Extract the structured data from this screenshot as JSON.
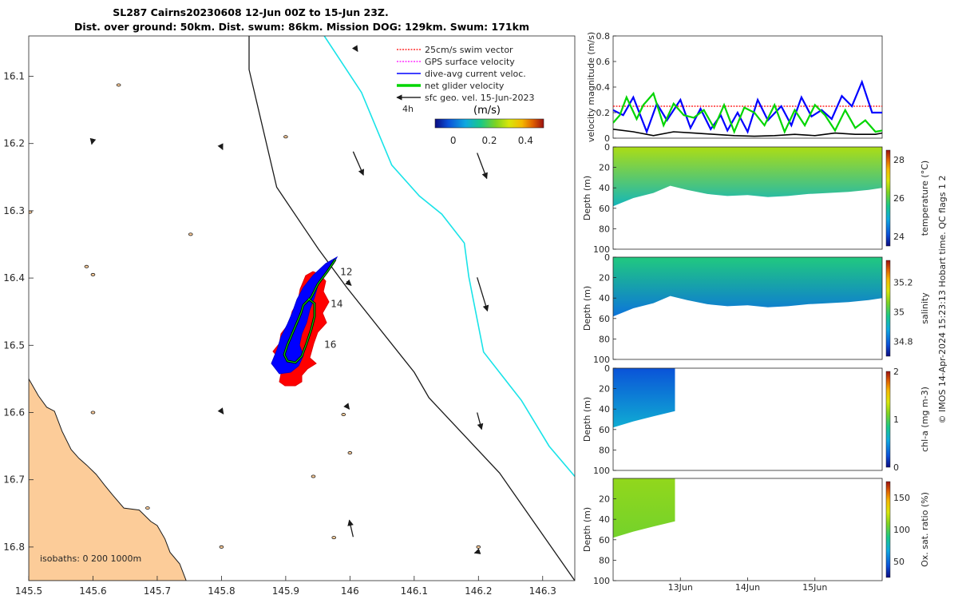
{
  "figure": {
    "title_line1": "SL287 Cairns20230608 12-Jun 00Z to 15-Jun 23Z.",
    "title_line2": "Dist. over ground: 50km. Dist. swum: 86km. Mission DOG: 129km. Swum: 171km",
    "credit": "© IMOS 14-Apr-2024 15:23:13 Hobart time. QC flags 1  2"
  },
  "colors": {
    "land": "#fccc99",
    "track_blue": "#0000ff",
    "swim_red": "#ff0000",
    "cyan_isobath": "#19e3e8",
    "net_green": "#00d500",
    "geo_black": "#1a1a1a"
  },
  "chart_data": [
    {
      "id": "map",
      "type": "scatter",
      "xlabel": "",
      "ylabel": "",
      "xlim": [
        145.5,
        146.35
      ],
      "ylim": [
        -16.85,
        -16.04
      ],
      "x_ticks": [
        145.5,
        145.6,
        145.7,
        145.8,
        145.9,
        146.0,
        146.1,
        146.2,
        146.3
      ],
      "x_tick_labels": [
        "145.5",
        "145.6",
        "145.7",
        "145.8",
        "145.9",
        "146",
        "146.1",
        "146.2",
        "146.3"
      ],
      "y_ticks": [
        -16.1,
        -16.2,
        -16.3,
        -16.4,
        -16.5,
        -16.6,
        -16.7,
        -16.8
      ],
      "y_tick_labels": [
        "16.1",
        "16.2",
        "16.3",
        "16.4",
        "16.5",
        "16.6",
        "16.7",
        "16.8"
      ],
      "legend": [
        {
          "label": "25cm/s swim vector",
          "color": "#ff0000",
          "style": "dotted"
        },
        {
          "label": "GPS surface velocity",
          "color": "#ff00ff",
          "style": "dotted"
        },
        {
          "label": "dive-avg current veloc.",
          "color": "#0000ff",
          "style": "solid"
        },
        {
          "label": "net glider velocity",
          "color": "#00d500",
          "style": "thick"
        },
        {
          "label": "sfc geo. vel. 15-Jun-2023",
          "color": "#000000",
          "style": "solid"
        }
      ],
      "time_note": "4h",
      "colorbar": {
        "label": "(m/s)",
        "ticks": [
          0,
          0.2,
          0.4
        ],
        "tick_labels": [
          "0",
          "0.2",
          "0.4"
        ],
        "range": [
          -0.1,
          0.5
        ]
      },
      "isobaths_note": "isobaths: 0   200  1000m",
      "track_labels": [
        {
          "text": "12",
          "lon": 145.985,
          "lat": -16.396
        },
        {
          "text": "14",
          "lon": 145.97,
          "lat": -16.443
        },
        {
          "text": "16",
          "lon": 145.96,
          "lat": -16.504
        }
      ],
      "isobath_200m": [
        [
          145.843,
          -16.04
        ],
        [
          145.843,
          -16.09
        ],
        [
          145.886,
          -16.265
        ],
        [
          145.951,
          -16.357
        ],
        [
          145.995,
          -16.414
        ],
        [
          146.1,
          -16.54
        ],
        [
          146.123,
          -16.578
        ],
        [
          146.233,
          -16.69
        ],
        [
          146.35,
          -16.85
        ]
      ],
      "isobath_1000m": [
        [
          145.96,
          -16.04
        ],
        [
          146.018,
          -16.124
        ],
        [
          146.065,
          -16.232
        ],
        [
          146.108,
          -16.278
        ],
        [
          146.143,
          -16.305
        ],
        [
          146.178,
          -16.348
        ],
        [
          146.185,
          -16.398
        ],
        [
          146.208,
          -16.51
        ],
        [
          146.267,
          -16.582
        ],
        [
          146.31,
          -16.65
        ],
        [
          146.35,
          -16.695
        ]
      ],
      "coast": [
        [
          145.5,
          -16.55
        ],
        [
          145.515,
          -16.575
        ],
        [
          145.528,
          -16.592
        ],
        [
          145.54,
          -16.598
        ],
        [
          145.552,
          -16.628
        ],
        [
          145.566,
          -16.655
        ],
        [
          145.578,
          -16.668
        ],
        [
          145.59,
          -16.678
        ],
        [
          145.605,
          -16.692
        ],
        [
          145.618,
          -16.708
        ],
        [
          145.63,
          -16.722
        ],
        [
          145.648,
          -16.742
        ],
        [
          145.672,
          -16.745
        ],
        [
          145.69,
          -16.762
        ],
        [
          145.7,
          -16.768
        ],
        [
          145.712,
          -16.788
        ],
        [
          145.72,
          -16.808
        ],
        [
          145.735,
          -16.825
        ],
        [
          145.745,
          -16.85
        ],
        [
          145.5,
          -16.85
        ]
      ],
      "geo_arrows": [
        {
          "lon": 146.005,
          "lat": -16.212,
          "u": 0.016,
          "v": -0.035
        },
        {
          "lon": 146.198,
          "lat": -16.214,
          "u": 0.015,
          "v": -0.038
        },
        {
          "lon": 146.198,
          "lat": -16.399,
          "u": 0.016,
          "v": -0.05
        },
        {
          "lon": 146.198,
          "lat": -16.6,
          "u": 0.007,
          "v": -0.025
        },
        {
          "lon": 146.005,
          "lat": -16.785,
          "u": -0.006,
          "v": 0.025
        },
        {
          "lon": 145.995,
          "lat": -16.405,
          "u": 0.007,
          "v": -0.006
        },
        {
          "lon": 145.995,
          "lat": -16.59,
          "u": 0.004,
          "v": -0.005
        },
        {
          "lon": 145.6,
          "lat": -16.193,
          "u": -0.002,
          "v": -0.008
        },
        {
          "lon": 145.8,
          "lat": -16.205,
          "u": 0.002,
          "v": -0.004
        },
        {
          "lon": 145.8,
          "lat": -16.598,
          "u": 0.003,
          "v": -0.004
        },
        {
          "lon": 146.2,
          "lat": -16.807,
          "u": -0.006,
          "v": -0.002
        },
        {
          "lon": 146.01,
          "lat": -16.06,
          "u": 0.002,
          "v": -0.003
        }
      ],
      "reefs": [
        {
          "lon": 145.64,
          "lat": -16.113
        },
        {
          "lon": 145.502,
          "lat": -16.302
        },
        {
          "lon": 145.752,
          "lat": -16.335
        },
        {
          "lon": 145.59,
          "lat": -16.383
        },
        {
          "lon": 145.6,
          "lat": -16.395
        },
        {
          "lon": 145.9,
          "lat": -16.19
        },
        {
          "lon": 145.99,
          "lat": -16.603
        },
        {
          "lon": 146.0,
          "lat": -16.66
        },
        {
          "lon": 145.943,
          "lat": -16.695
        },
        {
          "lon": 145.685,
          "lat": -16.742
        },
        {
          "lon": 145.975,
          "lat": -16.786
        },
        {
          "lon": 145.6,
          "lat": -16.6
        },
        {
          "lon": 145.8,
          "lat": -16.8
        },
        {
          "lon": 146.2,
          "lat": -16.8
        }
      ]
    },
    {
      "id": "velocity",
      "type": "line",
      "xlabel": "",
      "ylabel": "velocity magnitude (m/s)",
      "xlim": [
        12.0,
        16.0
      ],
      "ylim": [
        0,
        0.8
      ],
      "y_ticks": [
        0,
        0.2,
        0.4,
        0.6,
        0.8
      ],
      "y_tick_labels": [
        "0",
        "0.2",
        "0.4",
        "0.6",
        "0.8"
      ],
      "series": [
        {
          "name": "25cm/s swim vector",
          "color": "#ff0000",
          "x": [
            12.0,
            16.0
          ],
          "values": [
            0.25,
            0.25
          ]
        },
        {
          "name": "dive-avg current veloc.",
          "color": "#0000ff",
          "x": [
            12.0,
            12.15,
            12.3,
            12.5,
            12.65,
            12.8,
            13.0,
            13.15,
            13.3,
            13.45,
            13.6,
            13.7,
            13.85,
            14.0,
            14.15,
            14.3,
            14.5,
            14.65,
            14.8,
            14.95,
            15.1,
            15.25,
            15.4,
            15.55,
            15.7,
            15.85,
            16.0
          ],
          "values": [
            0.22,
            0.18,
            0.32,
            0.05,
            0.27,
            0.14,
            0.3,
            0.08,
            0.23,
            0.07,
            0.18,
            0.06,
            0.2,
            0.05,
            0.3,
            0.14,
            0.25,
            0.1,
            0.32,
            0.17,
            0.22,
            0.15,
            0.33,
            0.25,
            0.44,
            0.2,
            0.2
          ]
        },
        {
          "name": "net glider velocity",
          "color": "#00d500",
          "x": [
            12.0,
            12.1,
            12.2,
            12.35,
            12.45,
            12.6,
            12.75,
            12.9,
            13.05,
            13.2,
            13.35,
            13.5,
            13.65,
            13.8,
            13.95,
            14.1,
            14.25,
            14.4,
            14.55,
            14.7,
            14.85,
            15.0,
            15.15,
            15.3,
            15.45,
            15.6,
            15.75,
            15.9,
            16.0
          ],
          "values": [
            0.12,
            0.18,
            0.32,
            0.15,
            0.26,
            0.35,
            0.1,
            0.27,
            0.18,
            0.16,
            0.22,
            0.08,
            0.26,
            0.05,
            0.24,
            0.2,
            0.1,
            0.26,
            0.05,
            0.22,
            0.1,
            0.26,
            0.18,
            0.06,
            0.22,
            0.08,
            0.14,
            0.05,
            0.06
          ]
        },
        {
          "name": "sfc geo. vel.",
          "color": "#000000",
          "x": [
            12.0,
            12.3,
            12.6,
            12.9,
            13.2,
            13.5,
            13.8,
            14.1,
            14.4,
            14.7,
            15.0,
            15.3,
            15.6,
            15.9,
            16.0
          ],
          "values": [
            0.07,
            0.05,
            0.02,
            0.05,
            0.04,
            0.03,
            0.02,
            0.015,
            0.02,
            0.03,
            0.02,
            0.04,
            0.03,
            0.03,
            0.04
          ]
        }
      ]
    },
    {
      "id": "temperature",
      "type": "heatmap",
      "xlabel": "",
      "ylabel": "Depth (m)",
      "xlim": [
        12.0,
        16.0
      ],
      "ylim": [
        100,
        0
      ],
      "y_ticks": [
        0,
        20,
        40,
        60,
        80,
        100
      ],
      "y_tick_labels": [
        "0",
        "20",
        "40",
        "60",
        "80",
        "100"
      ],
      "colorbar": {
        "label": "temperature (°C)",
        "range": [
          23.5,
          28.5
        ],
        "ticks": [
          24,
          26,
          28
        ],
        "tick_labels": [
          "24",
          "26",
          "28"
        ]
      },
      "bottom_depth": {
        "x": [
          12.0,
          12.3,
          12.6,
          12.85,
          13.1,
          13.4,
          13.7,
          14.0,
          14.3,
          14.6,
          14.9,
          15.2,
          15.5,
          15.8,
          16.0
        ],
        "values": [
          58,
          50,
          45,
          38,
          42,
          46,
          48,
          47,
          49,
          48,
          46,
          45,
          44,
          42,
          40
        ]
      },
      "surface_value": 26.6,
      "deep_value": 25.2
    },
    {
      "id": "salinity",
      "type": "heatmap",
      "xlabel": "",
      "ylabel": "Depth (m)",
      "xlim": [
        12.0,
        16.0
      ],
      "ylim": [
        100,
        0
      ],
      "y_ticks": [
        0,
        20,
        40,
        60,
        80,
        100
      ],
      "y_tick_labels": [
        "0",
        "20",
        "40",
        "60",
        "80",
        "100"
      ],
      "colorbar": {
        "label": "salinity",
        "range": [
          34.7,
          35.35
        ],
        "ticks": [
          34.8,
          35,
          35.2
        ],
        "tick_labels": [
          "34.8",
          "35",
          "35.2"
        ]
      },
      "bottom_depth": {
        "x": [
          12.0,
          12.3,
          12.6,
          12.85,
          13.1,
          13.4,
          13.7,
          14.0,
          14.3,
          14.6,
          14.9,
          15.2,
          15.5,
          15.8,
          16.0
        ],
        "values": [
          58,
          50,
          45,
          38,
          42,
          46,
          48,
          47,
          49,
          48,
          46,
          45,
          44,
          42,
          40
        ]
      },
      "surface_value": 34.98,
      "deep_value": 34.82
    },
    {
      "id": "chla",
      "type": "heatmap",
      "xlabel": "",
      "ylabel": "Depth (m)",
      "xlim": [
        12.0,
        16.0
      ],
      "ylim": [
        100,
        0
      ],
      "y_ticks": [
        0,
        20,
        40,
        60,
        80,
        100
      ],
      "y_tick_labels": [
        "0",
        "20",
        "40",
        "60",
        "80",
        "100"
      ],
      "colorbar": {
        "label": "chl-a (mg m-3)",
        "range": [
          0,
          2
        ],
        "ticks": [
          0,
          1,
          2
        ],
        "tick_labels": [
          "0",
          "1",
          "2"
        ]
      },
      "data_x_range": [
        12.0,
        12.92
      ],
      "bottom_depth": {
        "x": [
          12.0,
          12.3,
          12.6,
          12.92
        ],
        "values": [
          58,
          52,
          47,
          42
        ]
      },
      "surface_value": 0.25,
      "deep_value": 0.6
    },
    {
      "id": "oxygen",
      "type": "heatmap",
      "xlabel": "",
      "ylabel": "Depth (m)",
      "xlim": [
        12.0,
        16.0
      ],
      "ylim": [
        100,
        0
      ],
      "y_ticks": [
        20,
        40,
        60,
        80,
        100
      ],
      "y_tick_labels": [
        "20",
        "40",
        "60",
        "80",
        "100"
      ],
      "x_ticks": [
        13,
        14,
        15
      ],
      "x_tick_labels": [
        "13Jun",
        "14Jun",
        "15Jun"
      ],
      "colorbar": {
        "label": "Ox. sat. ratio (%)",
        "range": [
          25,
          175
        ],
        "ticks": [
          50,
          100,
          150
        ],
        "tick_labels": [
          "50",
          "100",
          "150"
        ]
      },
      "data_x_range": [
        12.0,
        12.92
      ],
      "bottom_depth": {
        "x": [
          12.0,
          12.3,
          12.6,
          12.92
        ],
        "values": [
          58,
          52,
          47,
          42
        ]
      },
      "surface_value": 113,
      "deep_value": 107
    }
  ]
}
